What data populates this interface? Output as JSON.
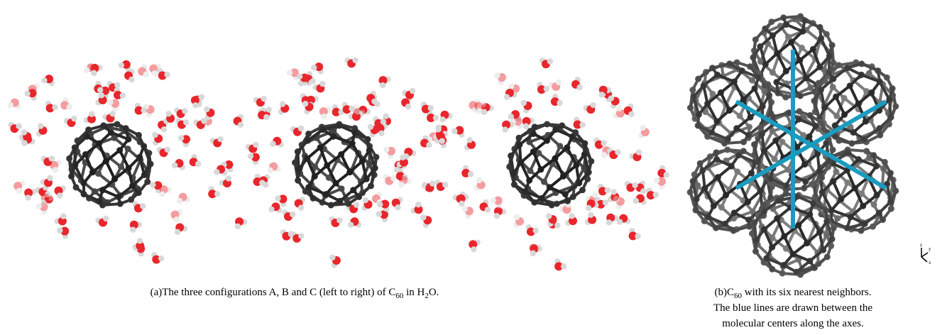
{
  "panel_a": {
    "caption": [
      "(a)The three configurations A, B and C (left to right) of C",
      "60",
      " in H",
      "2",
      "O."
    ]
  },
  "panel_b": {
    "caption_lines": [
      [
        "(b)C",
        "60",
        " with its six nearest neighbors."
      ],
      [
        "The blue lines are drawn between the"
      ],
      [
        "molecular centers along the axes."
      ]
    ],
    "axes": [
      "z",
      "y",
      "x"
    ]
  }
}
